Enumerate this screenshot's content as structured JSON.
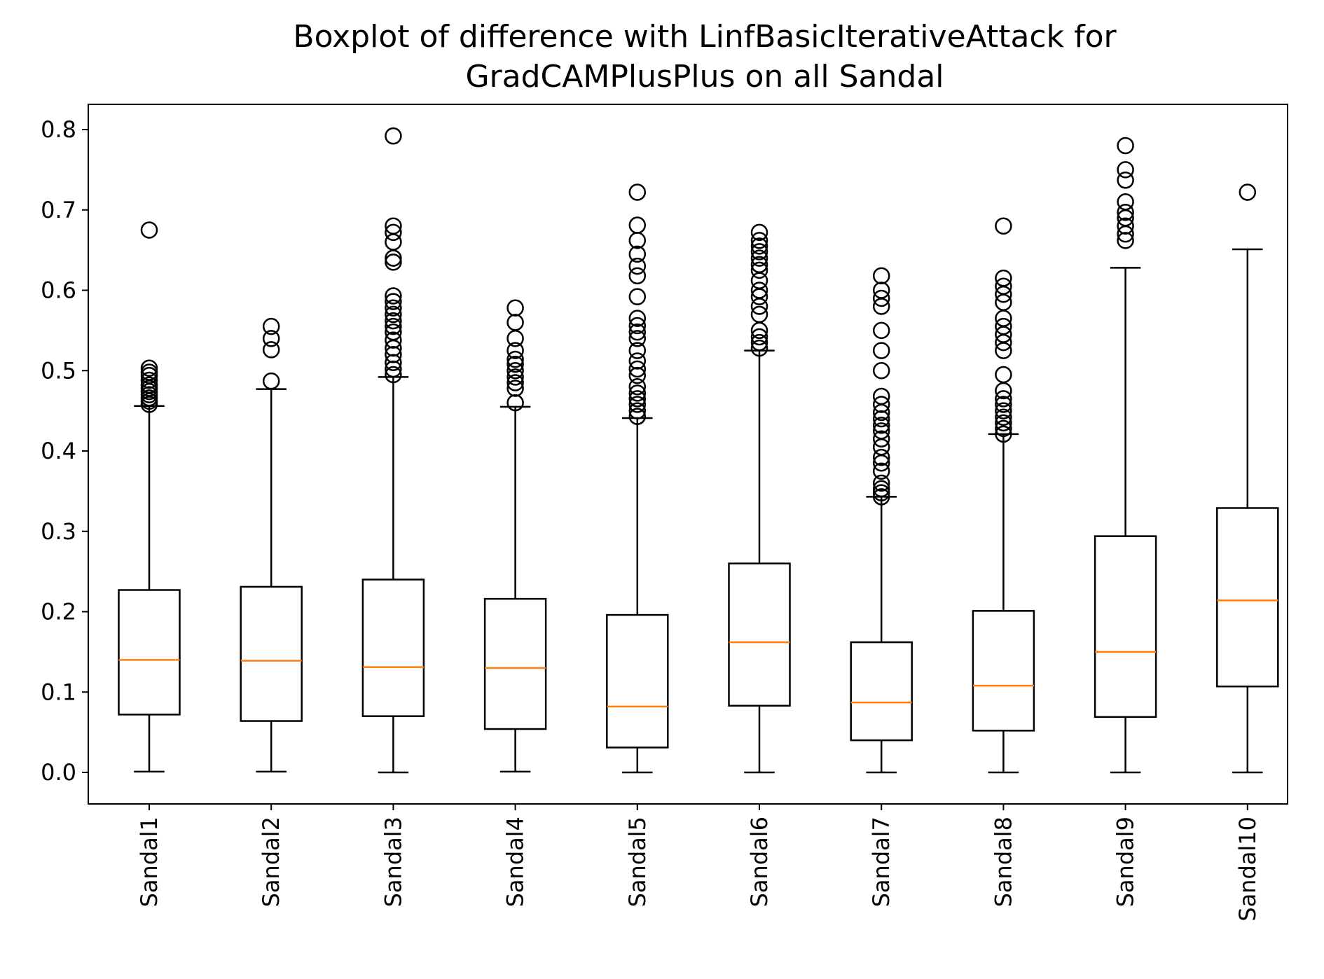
{
  "chart_data": {
    "type": "boxplot",
    "title_lines": [
      "Boxplot of difference with LinfBasicIterativeAttack for",
      "GradCAMPlusPlus on all Sandal"
    ],
    "xlabel": "",
    "ylabel": "",
    "ylim": [
      -0.04,
      0.833
    ],
    "yticks": [
      0.0,
      0.1,
      0.2,
      0.3,
      0.4,
      0.5,
      0.6,
      0.7,
      0.8
    ],
    "ytick_labels": [
      "0.0",
      "0.1",
      "0.2",
      "0.3",
      "0.4",
      "0.5",
      "0.6",
      "0.7",
      "0.8"
    ],
    "grid": false,
    "colors": {
      "box": "#000000",
      "median": "#ff7f0e",
      "background": "#ffffff"
    },
    "categories": [
      "Sandal1",
      "Sandal2",
      "Sandal3",
      "Sandal4",
      "Sandal5",
      "Sandal6",
      "Sandal7",
      "Sandal8",
      "Sandal9",
      "Sandal10"
    ],
    "boxes": [
      {
        "whislo": 0.001,
        "q1": 0.072,
        "med": 0.14,
        "q3": 0.227,
        "whishi": 0.456,
        "fliers": [
          0.458,
          0.462,
          0.466,
          0.47,
          0.474,
          0.478,
          0.482,
          0.488,
          0.494,
          0.498,
          0.503,
          0.675
        ]
      },
      {
        "whislo": 0.001,
        "q1": 0.064,
        "med": 0.139,
        "q3": 0.231,
        "whishi": 0.477,
        "fliers": [
          0.487,
          0.526,
          0.54,
          0.555
        ]
      },
      {
        "whislo": 0.0,
        "q1": 0.07,
        "med": 0.131,
        "q3": 0.24,
        "whishi": 0.492,
        "fliers": [
          0.495,
          0.502,
          0.51,
          0.52,
          0.528,
          0.538,
          0.548,
          0.555,
          0.562,
          0.57,
          0.578,
          0.586,
          0.593,
          0.635,
          0.64,
          0.66,
          0.672,
          0.68,
          0.792
        ]
      },
      {
        "whislo": 0.001,
        "q1": 0.054,
        "med": 0.13,
        "q3": 0.216,
        "whishi": 0.455,
        "fliers": [
          0.46,
          0.478,
          0.485,
          0.492,
          0.5,
          0.508,
          0.514,
          0.525,
          0.54,
          0.56,
          0.578
        ]
      },
      {
        "whislo": 0.0,
        "q1": 0.031,
        "med": 0.082,
        "q3": 0.196,
        "whishi": 0.441,
        "fliers": [
          0.443,
          0.45,
          0.458,
          0.465,
          0.472,
          0.48,
          0.494,
          0.502,
          0.512,
          0.525,
          0.54,
          0.548,
          0.556,
          0.565,
          0.592,
          0.618,
          0.63,
          0.645,
          0.662,
          0.681,
          0.722
        ]
      },
      {
        "whislo": 0.0,
        "q1": 0.083,
        "med": 0.162,
        "q3": 0.26,
        "whishi": 0.525,
        "fliers": [
          0.528,
          0.535,
          0.542,
          0.55,
          0.57,
          0.58,
          0.592,
          0.6,
          0.612,
          0.625,
          0.632,
          0.64,
          0.648,
          0.655,
          0.662,
          0.672
        ]
      },
      {
        "whislo": 0.0,
        "q1": 0.04,
        "med": 0.087,
        "q3": 0.162,
        "whishi": 0.343,
        "fliers": [
          0.343,
          0.348,
          0.353,
          0.36,
          0.375,
          0.385,
          0.392,
          0.405,
          0.415,
          0.425,
          0.432,
          0.44,
          0.448,
          0.458,
          0.468,
          0.5,
          0.525,
          0.55,
          0.58,
          0.59,
          0.6,
          0.618
        ]
      },
      {
        "whislo": 0.0,
        "q1": 0.052,
        "med": 0.108,
        "q3": 0.201,
        "whishi": 0.421,
        "fliers": [
          0.421,
          0.428,
          0.435,
          0.442,
          0.45,
          0.458,
          0.465,
          0.475,
          0.495,
          0.525,
          0.535,
          0.545,
          0.555,
          0.565,
          0.585,
          0.595,
          0.605,
          0.615,
          0.68
        ]
      },
      {
        "whislo": 0.0,
        "q1": 0.069,
        "med": 0.15,
        "q3": 0.294,
        "whishi": 0.628,
        "fliers": [
          0.662,
          0.67,
          0.68,
          0.69,
          0.697,
          0.71,
          0.737,
          0.75,
          0.78
        ]
      },
      {
        "whislo": 0.0,
        "q1": 0.107,
        "med": 0.214,
        "q3": 0.329,
        "whishi": 0.651,
        "fliers": [
          0.722
        ]
      }
    ]
  }
}
